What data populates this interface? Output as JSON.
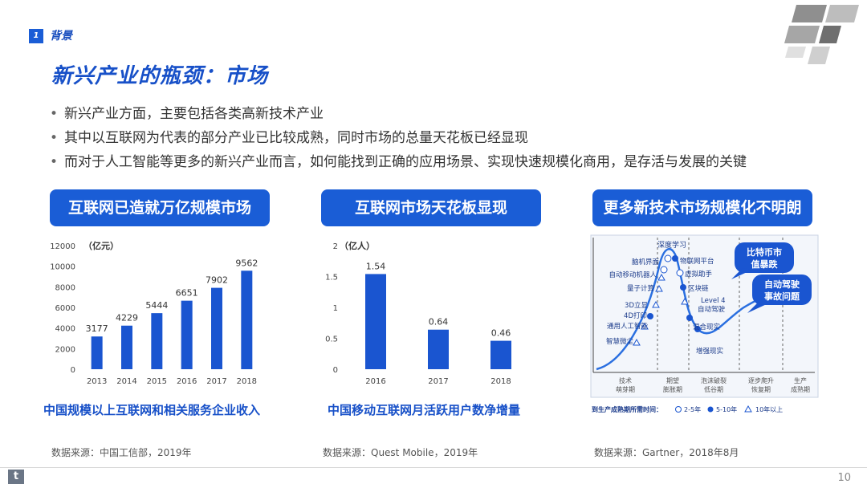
{
  "section": {
    "number": "1",
    "label": "背景"
  },
  "title": "新兴产业的瓶颈：市场",
  "bullets": [
    "新兴产业方面，主要包括各类高新技术产业",
    "其中以互联网为代表的部分产业已比较成熟，同时市场的总量天花板已经显现",
    "而对于人工智能等更多的新兴产业而言，如何能找到正确的应用场景、实现快速规模化商用，是存活与发展的关键"
  ],
  "panels": [
    {
      "title": "互联网已造就万亿规模市场",
      "caption": "中国规模以上互联网和相关服务企业收入",
      "source": "数据来源：中国工信部，2019年"
    },
    {
      "title": "互联网市场天花板显现",
      "caption": "中国移动互联网月活跃用户数净增量",
      "source": "数据来源：Quest Mobile，2019年"
    },
    {
      "title": "更多新技术市场规模化不明朗",
      "source": "数据来源：Gartner，2018年8月"
    }
  ],
  "chart_data": [
    {
      "type": "bar",
      "unit_label": "（亿元）",
      "categories": [
        "2013",
        "2014",
        "2015",
        "2016",
        "2017",
        "2018"
      ],
      "values": [
        3177,
        4229,
        5444,
        6651,
        7902,
        9562
      ],
      "ylim": [
        0,
        12000
      ],
      "yticks": [
        "0",
        "2000",
        "4000",
        "6000",
        "8000",
        "10000",
        "12000"
      ],
      "color": "#1a55d0"
    },
    {
      "type": "bar",
      "unit_label": "（亿人）",
      "categories": [
        "2016",
        "2017",
        "2018"
      ],
      "values": [
        1.54,
        0.64,
        0.46
      ],
      "value_labels": [
        "1.54",
        "0.64",
        "0.46"
      ],
      "ylim": [
        0,
        2
      ],
      "yticks": [
        "0",
        "0.5",
        "1",
        "1.5",
        "2"
      ],
      "color": "#1a55d0"
    }
  ],
  "hype_cycle": {
    "phase_labels": [
      [
        "技术",
        "萌芽期"
      ],
      [
        "期望",
        "膨胀期"
      ],
      [
        "泡沫破裂",
        "低谷期"
      ],
      [
        "逐步爬升",
        "恢复期"
      ],
      [
        "生产",
        "成熟期"
      ]
    ],
    "left_labels": [
      "脑机界面",
      "自动移动机器人",
      "量子计算",
      "3D立显",
      "4D打印",
      "通用人工智能",
      "智慧微尘"
    ],
    "top_label": "深度学习",
    "right_labels": [
      "物联网平台",
      "虚拟助手",
      "区块链",
      "Level 4",
      "自动驾驶",
      "混合现实",
      "增强现实"
    ],
    "callouts": [
      "比特币市",
      "值暴跌",
      "自动驾驶",
      "事故问题"
    ],
    "legend": {
      "prefix": "到生产成熟期所需时间：",
      "items": [
        "2-5年",
        "5-10年",
        "10年以上"
      ]
    },
    "accent": "#1a55d0",
    "curve_color": "#2a6fe0"
  },
  "page_number": "10",
  "footer_logo_glyph": "t",
  "colors": {
    "primary": "#1a5dd6",
    "title": "#1750c8"
  }
}
